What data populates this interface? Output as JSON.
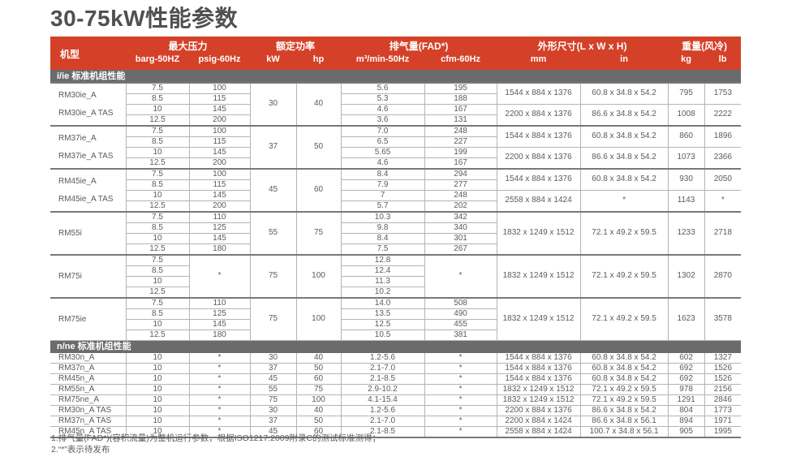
{
  "page": {
    "title": "30-75kW性能参数"
  },
  "colors": {
    "header_red": "#d44128",
    "section_gray": "#6a6b6d",
    "text_gray": "#5a5b5e"
  },
  "table": {
    "header": {
      "model": "机型",
      "groups": [
        {
          "label": "最大压力",
          "units": [
            "barg-50HZ",
            "psig-60Hz"
          ]
        },
        {
          "label": "额定功率",
          "units": [
            "kW",
            "hp"
          ]
        },
        {
          "label": "排气量(FAD*)",
          "units": [
            "m³/min-50Hz",
            "cfm-60Hz"
          ]
        },
        {
          "label": "外形尺寸(L x W x H)",
          "units": [
            "mm",
            "in"
          ]
        },
        {
          "label": "重量(风冷)",
          "units": [
            "kg",
            "lb"
          ]
        }
      ]
    },
    "sections": [
      {
        "bar_label": "i/ie 标准机组性能",
        "type": "blocks",
        "blocks": [
          {
            "model_lines": [
              "RM30ie_A",
              "RM30ie_A TAS"
            ],
            "barg": [
              "7.5",
              "8.5",
              "10",
              "12.5"
            ],
            "psig": [
              "100",
              "115",
              "145",
              "200"
            ],
            "kw": "30",
            "hp": "40",
            "fad": [
              "5.6",
              "5.3",
              "4.6",
              "3.6"
            ],
            "cfm": [
              "195",
              "188",
              "167",
              "131"
            ],
            "dims": [
              {
                "span": 2,
                "mm": "1544 x 884 x 1376",
                "in": "60.8 x 34.8 x 54.2",
                "kg": "795",
                "lb": "1753"
              },
              {
                "span": 2,
                "mm": "2200 x 884 x 1376",
                "in": "86.6 x 34.8 x 54.2",
                "kg": "1008",
                "lb": "2222"
              }
            ]
          },
          {
            "model_lines": [
              "RM37ie_A",
              "RM37ie_A TAS"
            ],
            "barg": [
              "7.5",
              "8.5",
              "10",
              "12.5"
            ],
            "psig": [
              "100",
              "115",
              "145",
              "200"
            ],
            "kw": "37",
            "hp": "50",
            "fad": [
              "7.0",
              "6.5",
              "5.65",
              "4.6"
            ],
            "cfm": [
              "248",
              "227",
              "199",
              "167"
            ],
            "dims": [
              {
                "span": 2,
                "mm": "1544 x 884 x 1376",
                "in": "60.8 x 34.8 x 54.2",
                "kg": "860",
                "lb": "1896"
              },
              {
                "span": 2,
                "mm": "2200 x 884 x 1376",
                "in": "86.6 x 34.8 x 54.2",
                "kg": "1073",
                "lb": "2366"
              }
            ]
          },
          {
            "model_lines": [
              "RM45ie_A",
              "RM45ie_A TAS"
            ],
            "barg": [
              "7.5",
              "8.5",
              "10",
              "12.5"
            ],
            "psig": [
              "100",
              "115",
              "145",
              "200"
            ],
            "kw": "45",
            "hp": "60",
            "fad": [
              "8.4",
              "7.9",
              "7",
              "5.7"
            ],
            "cfm": [
              "294",
              "277",
              "248",
              "202"
            ],
            "dims": [
              {
                "span": 2,
                "mm": "1544 x 884 x 1376",
                "in": "60.8 x 34.8 x 54.2",
                "kg": "930",
                "lb": "2050"
              },
              {
                "span": 2,
                "mm": "2558 x 884 x 1424",
                "in": "*",
                "kg": "1143",
                "lb": "*"
              }
            ]
          },
          {
            "model_lines": [
              "RM55i"
            ],
            "barg": [
              "7.5",
              "8.5",
              "10",
              "12.5"
            ],
            "psig": [
              "110",
              "125",
              "145",
              "180"
            ],
            "kw": "55",
            "hp": "75",
            "fad": [
              "10.3",
              "9.8",
              "8.4",
              "7.5"
            ],
            "cfm": [
              "342",
              "340",
              "301",
              "267"
            ],
            "dims": [
              {
                "span": 4,
                "mm": "1832 x 1249 x 1512",
                "in": "72.1 x 49.2 x 59.5",
                "kg": "1233",
                "lb": "2718"
              }
            ]
          },
          {
            "model_lines": [
              "RM75i"
            ],
            "barg": [
              "7.5",
              "8.5",
              "10",
              "12.5"
            ],
            "psig": [
              "*"
            ],
            "kw": "75",
            "hp": "100",
            "fad": [
              "12.8",
              "12.4",
              "11.3",
              "10.2"
            ],
            "cfm": [
              "*"
            ],
            "dims": [
              {
                "span": 4,
                "mm": "1832 x 1249 x 1512",
                "in": "72.1 x 49.2 x 59.5",
                "kg": "1302",
                "lb": "2870"
              }
            ]
          },
          {
            "model_lines": [
              "RM75ie"
            ],
            "barg": [
              "7.5",
              "8.5",
              "10",
              "12.5"
            ],
            "psig": [
              "110",
              "125",
              "145",
              "180"
            ],
            "kw": "75",
            "hp": "100",
            "fad": [
              "14.0",
              "13.5",
              "12.5",
              "10.5"
            ],
            "cfm": [
              "508",
              "490",
              "455",
              "381"
            ],
            "dims": [
              {
                "span": 4,
                "mm": "1832 x 1249 x 1512",
                "in": "72.1 x 49.2 x 59.5",
                "kg": "1623",
                "lb": "3578"
              }
            ]
          }
        ]
      },
      {
        "bar_label": "n/ne 标准机组性能",
        "type": "rows",
        "rows": [
          [
            "RM30n_A",
            "10",
            "*",
            "30",
            "40",
            "1.2-5.6",
            "*",
            "1544 x 884 x 1376",
            "60.8 x 34.8 x 54.2",
            "602",
            "1327"
          ],
          [
            "RM37n_A",
            "10",
            "*",
            "37",
            "50",
            "2.1-7.0",
            "*",
            "1544 x 884 x 1376",
            "60.8 x 34.8 x 54.2",
            "692",
            "1526"
          ],
          [
            "RM45n_A",
            "10",
            "*",
            "45",
            "60",
            "2.1-8.5",
            "*",
            "1544 x 884 x 1376",
            "60.8 x 34.8 x 54.2",
            "692",
            "1526"
          ],
          [
            "RM55n_A",
            "10",
            "*",
            "55",
            "75",
            "2.9-10.2",
            "*",
            "1832 x 1249 x 1512",
            "72.1 x 49.2 x 59.5",
            "978",
            "2156"
          ],
          [
            "RM75ne_A",
            "10",
            "*",
            "75",
            "100",
            "4.1-15.4",
            "*",
            "1832 x 1249 x 1512",
            "72.1 x 49.2 x 59.5",
            "1291",
            "2846"
          ],
          [
            "RM30n_A TAS",
            "10",
            "*",
            "30",
            "40",
            "1.2-5.6",
            "*",
            "2200 x 884 x 1376",
            "86.6 x 34.8 x 54.2",
            "804",
            "1773"
          ],
          [
            "RM37n_A TAS",
            "10",
            "*",
            "37",
            "50",
            "2.1-7.0",
            "*",
            "2200 x 884 x 1424",
            "86.6 x 34.8 x 56.1",
            "894",
            "1971"
          ],
          [
            "RM45n_A TAS",
            "10",
            "*",
            "45",
            "60",
            "2.1-8.5",
            "*",
            "2558 x 884 x 1424",
            "100.7 x 34.8 x 56.1",
            "905",
            "1995"
          ]
        ]
      }
    ]
  },
  "footnotes": [
    "1.排气量(FAD*)(容积流量)为整机运行参数，根据ISO1217:2009附录C的测试标准测得；",
    "2.“*”表示待发布"
  ]
}
